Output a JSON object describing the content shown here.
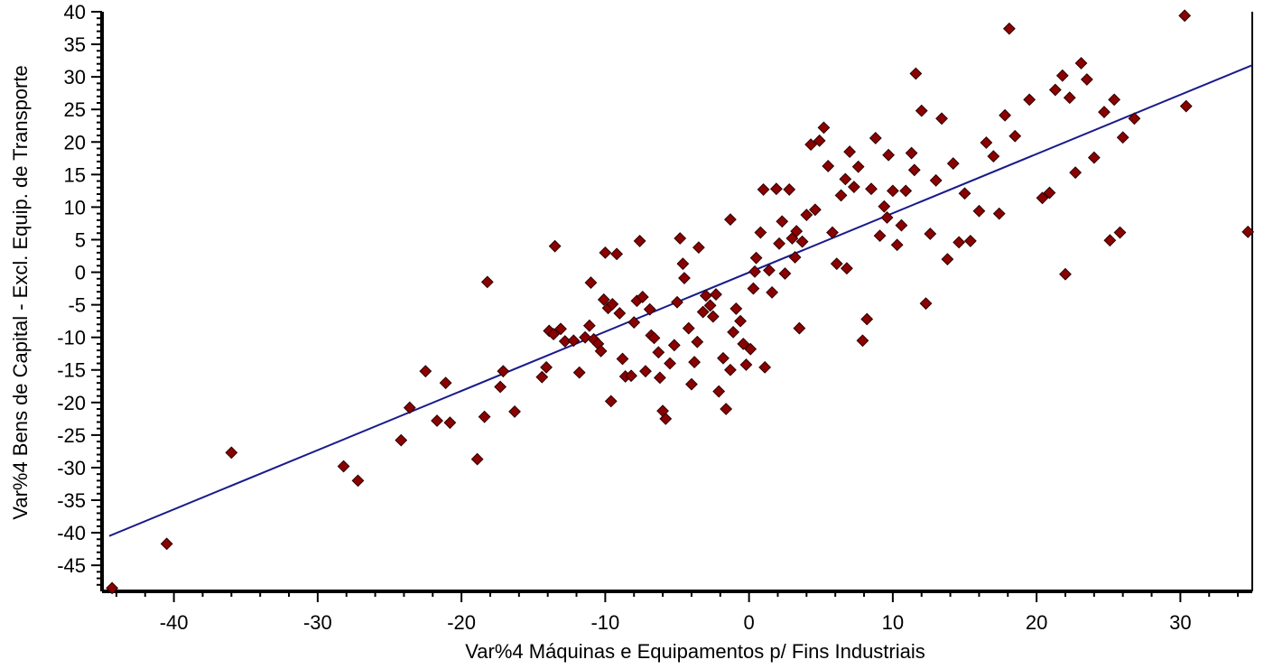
{
  "chart_data": {
    "type": "scatter",
    "title": "",
    "xlabel": "Var%4 Máquinas e Equipamentos p/ Fins Industriais",
    "ylabel": "Var%4 Bens de Capital - Excl. Equip. de Transporte",
    "xlim": [
      -45,
      35
    ],
    "ylim": [
      -49,
      40
    ],
    "x_ticks": [
      -40,
      -30,
      -20,
      -10,
      0,
      10,
      20,
      30
    ],
    "y_ticks": [
      40,
      35,
      30,
      25,
      20,
      15,
      10,
      5,
      0,
      -5,
      -10,
      -15,
      -20,
      -25,
      -30,
      -35,
      -40,
      -45
    ],
    "grid": false,
    "marker_color": "#8b0000",
    "trendline": {
      "x": [
        -44.5,
        35
      ],
      "y": [
        -40.5,
        31.8
      ],
      "color": "#1a1a8c"
    },
    "points": [
      [
        -44.3,
        -48.5
      ],
      [
        -40.5,
        -41.7
      ],
      [
        -36,
        -27.7
      ],
      [
        -28.2,
        -29.8
      ],
      [
        -27.2,
        -32
      ],
      [
        -24.2,
        -25.8
      ],
      [
        -23.6,
        -20.8
      ],
      [
        -22.5,
        -15.2
      ],
      [
        -21.7,
        -22.8
      ],
      [
        -21.1,
        -17
      ],
      [
        -20.8,
        -23.1
      ],
      [
        -18.9,
        -28.7
      ],
      [
        -18.4,
        -22.2
      ],
      [
        -18.2,
        -1.5
      ],
      [
        -17.3,
        -17.6
      ],
      [
        -17.1,
        -15.2
      ],
      [
        -16.3,
        -21.4
      ],
      [
        -14.4,
        -16.1
      ],
      [
        -14.1,
        -14.6
      ],
      [
        -13.9,
        -9
      ],
      [
        -13.6,
        -9.5
      ],
      [
        -13.5,
        4
      ],
      [
        -13.1,
        -8.7
      ],
      [
        -12.8,
        -10.6
      ],
      [
        -12.2,
        -10.5
      ],
      [
        -11.8,
        -15.4
      ],
      [
        -11.4,
        -10
      ],
      [
        -11.1,
        -8.2
      ],
      [
        -11,
        -1.6
      ],
      [
        -10.8,
        -10.3
      ],
      [
        -10.5,
        -11
      ],
      [
        -10.3,
        -12.1
      ],
      [
        -10.1,
        -4.2
      ],
      [
        -10,
        3
      ],
      [
        -9.8,
        -5.5
      ],
      [
        -9.6,
        -19.8
      ],
      [
        -9.2,
        2.8
      ],
      [
        -9,
        -6.3
      ],
      [
        -8.8,
        -13.3
      ],
      [
        -8.6,
        -16
      ],
      [
        -8.2,
        -15.9
      ],
      [
        -8,
        -7.7
      ],
      [
        -7.8,
        -4.4
      ],
      [
        -7.6,
        4.8
      ],
      [
        -7.4,
        -3.8
      ],
      [
        -7.2,
        -15.2
      ],
      [
        -6.8,
        -9.7
      ],
      [
        -6.6,
        -10.1
      ],
      [
        -6.3,
        -12.3
      ],
      [
        -6.2,
        -16.2
      ],
      [
        -6,
        -21.3
      ],
      [
        -5.8,
        -22.5
      ],
      [
        -5.5,
        -14
      ],
      [
        -5.2,
        -11.2
      ],
      [
        -5,
        -4.6
      ],
      [
        -4.8,
        5.2
      ],
      [
        -4.6,
        1.3
      ],
      [
        -4.2,
        -8.6
      ],
      [
        -4,
        -17.2
      ],
      [
        -3.8,
        -13.8
      ],
      [
        -3.6,
        -10.7
      ],
      [
        -3.2,
        -6.1
      ],
      [
        -3,
        -3.6
      ],
      [
        -2.7,
        -5.1
      ],
      [
        -2.5,
        -6.8
      ],
      [
        -2.3,
        -3.4
      ],
      [
        -2.1,
        -18.3
      ],
      [
        -1.8,
        -13.2
      ],
      [
        -1.6,
        -21
      ],
      [
        -1.3,
        -15
      ],
      [
        -1.1,
        -9.2
      ],
      [
        -0.9,
        -5.6
      ],
      [
        -0.6,
        -7.5
      ],
      [
        -0.4,
        -11
      ],
      [
        -0.2,
        -14.2
      ],
      [
        0.1,
        -11.8
      ],
      [
        0.3,
        -2.5
      ],
      [
        0.5,
        2.2
      ],
      [
        0.8,
        6.1
      ],
      [
        1.1,
        -14.6
      ],
      [
        1.4,
        0.3
      ],
      [
        1.6,
        -3.1
      ],
      [
        1.9,
        12.8
      ],
      [
        2.3,
        7.8
      ],
      [
        2.5,
        -0.2
      ],
      [
        2.8,
        12.7
      ],
      [
        3,
        5.2
      ],
      [
        3.2,
        2.3
      ],
      [
        3.5,
        -8.6
      ],
      [
        3.7,
        4.7
      ],
      [
        4,
        8.8
      ],
      [
        4.3,
        19.6
      ],
      [
        4.6,
        9.6
      ],
      [
        4.9,
        20.2
      ],
      [
        5.2,
        22.2
      ],
      [
        5.5,
        16.3
      ],
      [
        5.8,
        6.1
      ],
      [
        6.1,
        1.3
      ],
      [
        6.4,
        11.8
      ],
      [
        6.7,
        14.3
      ],
      [
        7,
        18.5
      ],
      [
        7.3,
        13.1
      ],
      [
        7.6,
        16.2
      ],
      [
        7.9,
        -10.5
      ],
      [
        8.2,
        -7.2
      ],
      [
        8.5,
        12.8
      ],
      [
        8.8,
        20.6
      ],
      [
        9.1,
        5.6
      ],
      [
        9.4,
        10.1
      ],
      [
        9.7,
        18
      ],
      [
        10,
        12.5
      ],
      [
        10.3,
        4.2
      ],
      [
        10.6,
        7.2
      ],
      [
        10.9,
        12.5
      ],
      [
        11.3,
        18.3
      ],
      [
        11.6,
        30.5
      ],
      [
        12,
        24.8
      ],
      [
        12.3,
        -4.8
      ],
      [
        12.6,
        5.9
      ],
      [
        13,
        14.1
      ],
      [
        13.4,
        23.6
      ],
      [
        13.8,
        2
      ],
      [
        14.2,
        16.7
      ],
      [
        14.6,
        4.6
      ],
      [
        15,
        12.1
      ],
      [
        15.4,
        4.8
      ],
      [
        16,
        9.4
      ],
      [
        16.5,
        19.9
      ],
      [
        17,
        17.8
      ],
      [
        17.4,
        9
      ],
      [
        17.8,
        24.1
      ],
      [
        18.1,
        37.4
      ],
      [
        18.5,
        20.9
      ],
      [
        19.5,
        26.5
      ],
      [
        20.4,
        11.4
      ],
      [
        20.9,
        12.2
      ],
      [
        21.3,
        28
      ],
      [
        21.8,
        30.2
      ],
      [
        22,
        -0.3
      ],
      [
        22.3,
        26.8
      ],
      [
        22.7,
        15.3
      ],
      [
        23.1,
        32.1
      ],
      [
        23.5,
        29.6
      ],
      [
        24,
        17.6
      ],
      [
        24.7,
        24.6
      ],
      [
        25.1,
        4.9
      ],
      [
        25.4,
        26.5
      ],
      [
        25.8,
        6.1
      ],
      [
        26,
        20.7
      ],
      [
        26.8,
        23.6
      ],
      [
        30.3,
        39.4
      ],
      [
        30.4,
        25.5
      ],
      [
        34.7,
        6.2
      ],
      [
        -3.5,
        3.8
      ],
      [
        -1.3,
        8.1
      ],
      [
        1,
        12.7
      ],
      [
        3.3,
        6.3
      ],
      [
        6.8,
        0.6
      ],
      [
        9.6,
        8.4
      ],
      [
        11.5,
        15.7
      ],
      [
        -9.5,
        -4.9
      ],
      [
        -6.9,
        -5.7
      ],
      [
        -4.5,
        -0.9
      ],
      [
        0.4,
        0.1
      ],
      [
        2.1,
        4.4
      ]
    ]
  }
}
